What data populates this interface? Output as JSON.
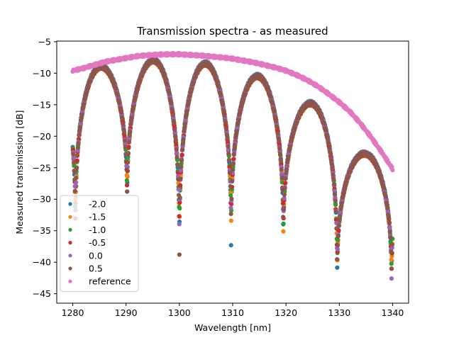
{
  "chart_data": {
    "type": "scatter",
    "title": "Transmission spectra - as measured",
    "xlabel": "Wavelength [nm]",
    "ylabel": "Measured transmission [dB]",
    "xlim": [
      1277,
      1343
    ],
    "ylim": [
      -46.5,
      -4.9
    ],
    "xticks": [
      1280,
      1290,
      1300,
      1310,
      1320,
      1330,
      1340
    ],
    "yticks": [
      -45,
      -40,
      -35,
      -30,
      -25,
      -20,
      -15,
      -10,
      -5
    ],
    "xtick_labels": [
      "1280",
      "1290",
      "1300",
      "1310",
      "1320",
      "1330",
      "1340"
    ],
    "ytick_labels": [
      "−45",
      "−40",
      "−35",
      "−30",
      "−25",
      "−20",
      "−15",
      "−10",
      "−5"
    ],
    "grid": false,
    "legend_position": "lower-left",
    "x_range": [
      1280,
      1340
    ],
    "series": [
      {
        "name": "-2.0",
        "color": "#1f77b4",
        "y_offset": 0.15
      },
      {
        "name": "-1.5",
        "color": "#ff7f0e",
        "y_offset": -0.1
      },
      {
        "name": "-1.0",
        "color": "#2ca02c",
        "y_offset": 0.05
      },
      {
        "name": "-0.5",
        "color": "#d62728",
        "y_offset": -0.05
      },
      {
        "name": "0.0",
        "color": "#9467bd",
        "y_offset": 0.1
      },
      {
        "name": "0.5",
        "color": "#8c564b",
        "y_offset": 0.0
      }
    ],
    "fringe_peaks": [
      {
        "x": 1285.5,
        "y": -9.0
      },
      {
        "x": 1295.2,
        "y": -8.0
      },
      {
        "x": 1304.8,
        "y": -8.5
      },
      {
        "x": 1314.3,
        "y": -10.5
      },
      {
        "x": 1323.8,
        "y": -14.8
      },
      {
        "x": 1333.2,
        "y": -22.8
      }
    ],
    "fringe_minima": [
      {
        "x": 1280.5,
        "y": -36.0
      },
      {
        "x": 1290.2,
        "y": -32.0
      },
      {
        "x": 1300.0,
        "y": -39.0
      },
      {
        "x": 1309.7,
        "y": -37.5
      },
      {
        "x": 1319.5,
        "y": -38.0
      },
      {
        "x": 1329.6,
        "y": -43.5
      },
      {
        "x": 1339.8,
        "y": -44.5
      }
    ],
    "reference": {
      "name": "reference",
      "color": "#e377c2",
      "points": [
        [
          1280,
          -9.6
        ],
        [
          1282,
          -9.2
        ],
        [
          1284,
          -8.7
        ],
        [
          1286,
          -8.2
        ],
        [
          1288,
          -7.9
        ],
        [
          1290,
          -7.6
        ],
        [
          1292,
          -7.3
        ],
        [
          1294,
          -7.15
        ],
        [
          1296,
          -7.05
        ],
        [
          1298,
          -7.0
        ],
        [
          1300,
          -7.0
        ],
        [
          1302,
          -7.1
        ],
        [
          1304,
          -7.2
        ],
        [
          1306,
          -7.35
        ],
        [
          1308,
          -7.5
        ],
        [
          1310,
          -7.7
        ],
        [
          1312,
          -8.0
        ],
        [
          1314,
          -8.3
        ],
        [
          1316,
          -8.7
        ],
        [
          1318,
          -9.1
        ],
        [
          1320,
          -9.6
        ],
        [
          1322,
          -10.3
        ],
        [
          1324,
          -11.1
        ],
        [
          1326,
          -12.1
        ],
        [
          1328,
          -13.3
        ],
        [
          1330,
          -14.6
        ],
        [
          1332,
          -16.1
        ],
        [
          1334,
          -18.0
        ],
        [
          1336,
          -20.2
        ],
        [
          1338,
          -22.6
        ],
        [
          1340,
          -25.2
        ]
      ]
    }
  }
}
